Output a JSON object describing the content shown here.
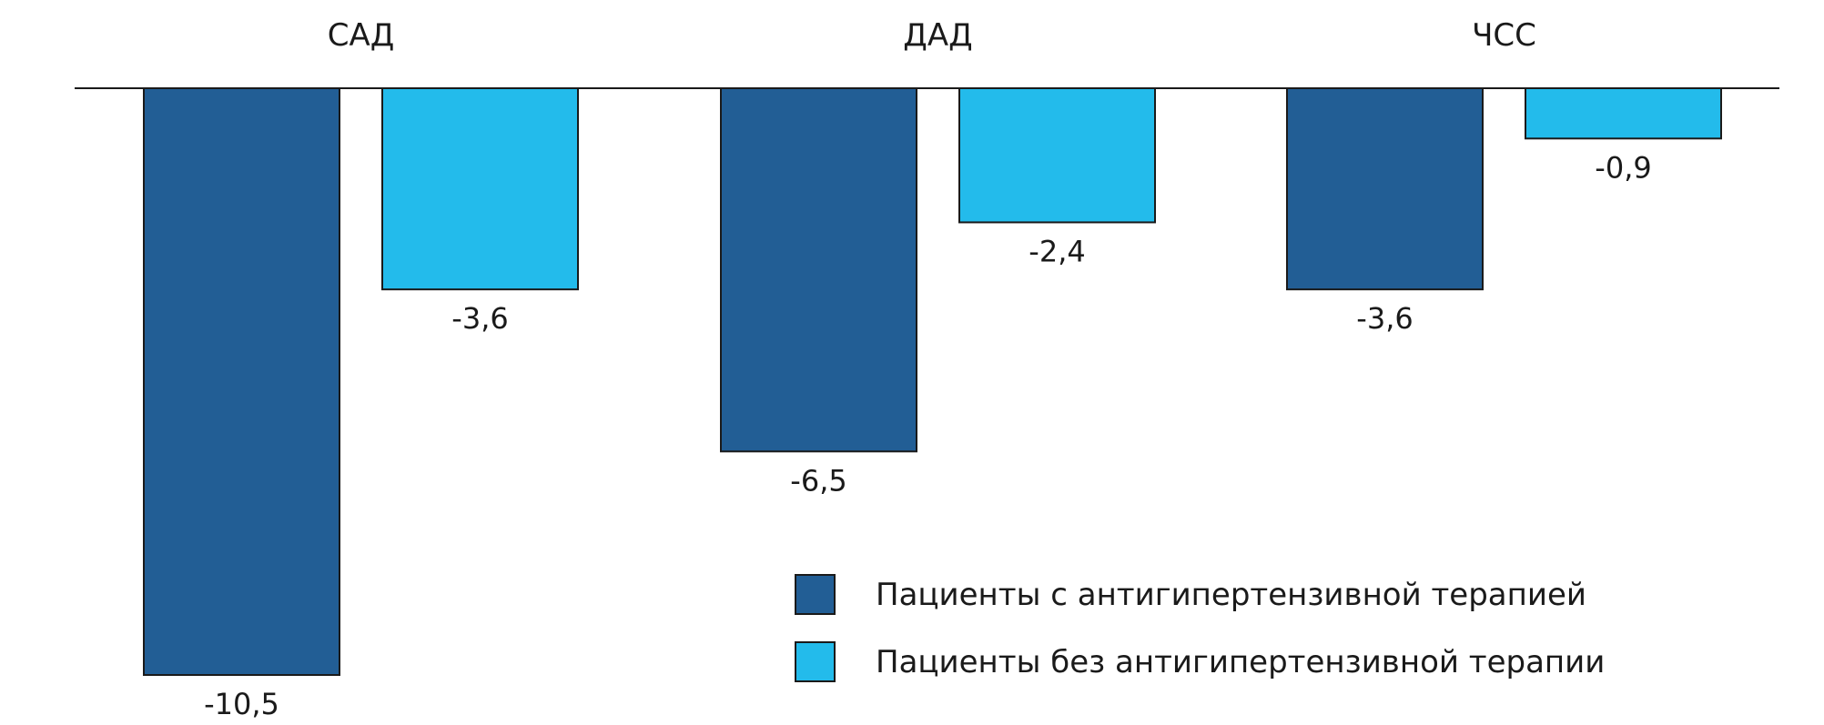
{
  "chart_data": {
    "type": "bar",
    "categories": [
      "САД",
      "ДАД",
      "ЧСС"
    ],
    "series": [
      {
        "name": "Пациенты с антигипертензивной терапией",
        "values": [
          -10.5,
          -6.5,
          -3.6
        ],
        "labels": [
          "-10,5",
          "-6,5",
          "-3,6"
        ],
        "color": "#225e95"
      },
      {
        "name": "Пациенты без антигипертензивной терапии",
        "values": [
          -3.6,
          -2.4,
          -0.9
        ],
        "labels": [
          "-3,6",
          "-2,4",
          "-0,9"
        ],
        "color": "#23bbeb"
      }
    ],
    "ylim": [
      -10.5,
      0
    ],
    "category_labels_position": "top",
    "grid": false,
    "legend": "bottom-right"
  }
}
